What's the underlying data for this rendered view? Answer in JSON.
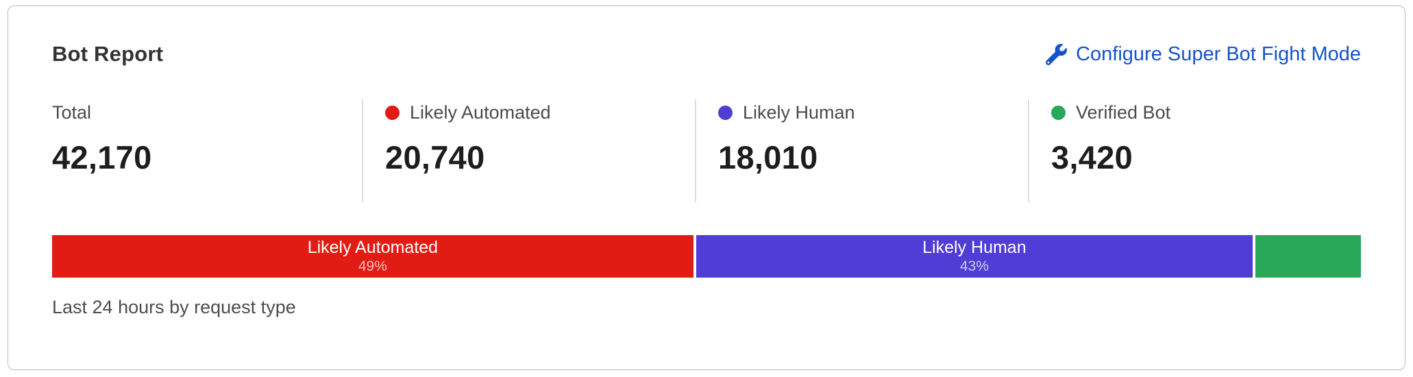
{
  "card": {
    "title": "Bot Report",
    "action": {
      "label": "Configure Super Bot Fight Mode",
      "icon": "wrench-icon",
      "color": "#1553c8"
    },
    "caption": "Last 24 hours by request type"
  },
  "stats": {
    "items": [
      {
        "label": "Total",
        "value": "42,170",
        "dot_color": ""
      },
      {
        "label": "Likely Automated",
        "value": "20,740",
        "dot_color": "#e11c15"
      },
      {
        "label": "Likely Human",
        "value": "18,010",
        "dot_color": "#4f3dd5"
      },
      {
        "label": "Verified Bot",
        "value": "3,420",
        "dot_color": "#2aa85a"
      }
    ]
  },
  "bar": {
    "segments": [
      {
        "label": "Likely Automated",
        "pct_label": "49%",
        "width_pct": 49.2,
        "color": "#e11c15"
      },
      {
        "label": "Likely Human",
        "pct_label": "43%",
        "width_pct": 42.7,
        "color": "#4f3dd5"
      },
      {
        "label": "",
        "pct_label": "",
        "width_pct": 8.1,
        "color": "#2aa85a"
      }
    ]
  },
  "chart_data": {
    "type": "bar",
    "title": "Bot Report",
    "subtitle": "Last 24 hours by request type",
    "categories": [
      "Likely Automated",
      "Likely Human",
      "Verified Bot"
    ],
    "values": [
      20740,
      18010,
      3420
    ],
    "total": 42170,
    "percentages": [
      49,
      43,
      8
    ],
    "colors": [
      "#e11c15",
      "#4f3dd5",
      "#2aa85a"
    ],
    "layout": "horizontal-stacked-100pct"
  }
}
